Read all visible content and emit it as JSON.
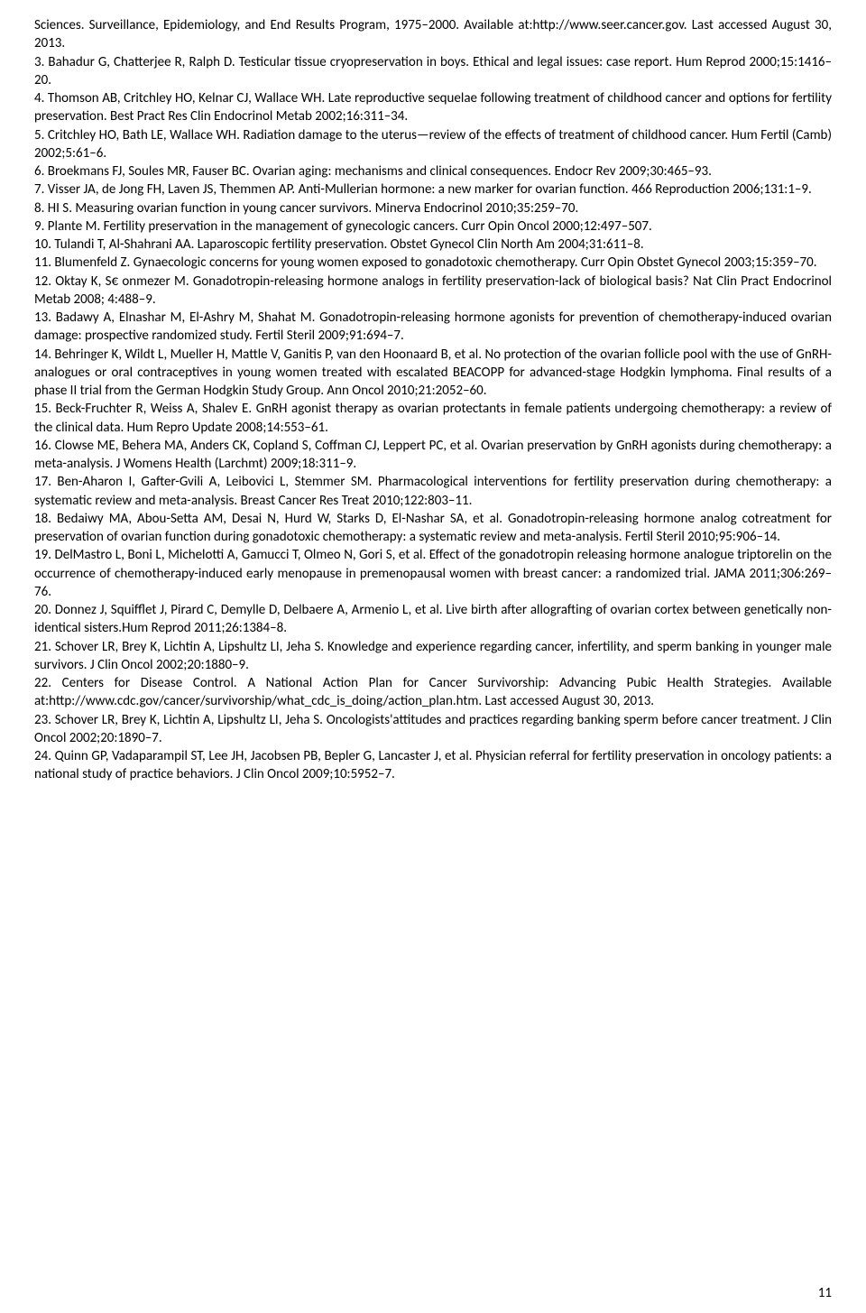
{
  "references": [
    "Sciences. Surveillance, Epidemiology, and End Results Program, 1975–2000. Available at:http://www.seer.cancer.gov. Last accessed August 30, 2013.",
    "3. Bahadur G, Chatterjee R, Ralph D. Testicular tissue cryopreservation in boys. Ethical and legal issues: case report. Hum Reprod 2000;15:1416–20.",
    "4. Thomson AB, Critchley HO, Kelnar CJ, Wallace WH. Late reproductive sequelae following treatment of childhood cancer and options for fertility preservation. Best Pract Res Clin Endocrinol Metab 2002;16:311–34.",
    "5. Critchley HO, Bath LE, Wallace WH. Radiation damage to the uterus—review of the effects of treatment of childhood cancer. Hum Fertil (Camb) 2002;5:61–6.",
    "6. Broekmans FJ, Soules MR, Fauser BC. Ovarian aging: mechanisms and clinical consequences. Endocr Rev 2009;30:465–93.",
    "7. Visser JA, de Jong FH, Laven JS, Themmen AP. Anti-Mullerian hormone: a new marker for ovarian function. 466 Reproduction 2006;131:1–9.",
    "8. HI S. Measuring ovarian function in young cancer survivors. Minerva Endocrinol 2010;35:259–70.",
    "9. Plante M. Fertility preservation in the management of gynecologic cancers. Curr Opin Oncol 2000;12:497–507.",
    "10. Tulandi T, Al-Shahrani AA. Laparoscopic fertility preservation. Obstet Gynecol Clin North Am 2004;31:611–8.",
    "11. Blumenfeld Z. Gynaecologic concerns for young women exposed to gonadotoxic chemotherapy. Curr Opin Obstet Gynecol 2003;15:359–70.",
    "12. Oktay K, S€ onmezer M. Gonadotropin-releasing hormone analogs in fertility preservation-lack of biological basis? Nat Clin Pract Endocrinol Metab 2008; 4:488–9.",
    "13. Badawy A, Elnashar M, El-Ashry M, Shahat M. Gonadotropin-releasing hormone agonists for prevention of chemotherapy-induced ovarian damage: prospective randomized study. Fertil Steril 2009;91:694–7.",
    "14. Behringer K, Wildt L, Mueller H, Mattle V, Ganitis P, van den Hoonaard B, et al. No protection of the ovarian follicle pool with the use of GnRH-analogues or oral contraceptives in young women treated with escalated BEACOPP for advanced-stage Hodgkin lymphoma. Final results of a phase II trial from the German Hodgkin Study Group. Ann Oncol 2010;21:2052–60.",
    "15. Beck-Fruchter R, Weiss A, Shalev E. GnRH agonist therapy as ovarian protectants in female patients undergoing chemotherapy: a review of the clinical data. Hum Repro Update 2008;14:553–61.",
    "16. Clowse ME, Behera MA, Anders CK, Copland S, Coffman CJ, Leppert PC, et al. Ovarian preservation by GnRH agonists during chemotherapy: a meta-analysis. J Womens Health (Larchmt) 2009;18:311–9.",
    "17. Ben-Aharon I, Gafter-Gvili A, Leibovici L, Stemmer SM. Pharmacological interventions for fertility preservation during chemotherapy: a systematic review and meta-analysis. Breast Cancer Res Treat 2010;122:803–11.",
    "18. Bedaiwy MA, Abou-Setta AM, Desai N, Hurd W, Starks D, El-Nashar SA, et al. Gonadotropin-releasing hormone analog cotreatment for preservation of ovarian function during gonadotoxic chemotherapy: a systematic review and meta-analysis. Fertil Steril 2010;95:906–14.",
    "19. DelMastro L, Boni L, Michelotti A, Gamucci T, Olmeo N, Gori S, et al. Effect of the gonadotropin releasing hormone analogue triptorelin on the occurrence of chemotherapy-induced early menopause in premenopausal women with breast cancer: a randomized trial. JAMA 2011;306:269–76.",
    "20. Donnez J, Squifflet J, Pirard C, Demylle D, Delbaere A, Armenio L, et al. Live birth after allografting of ovarian cortex between genetically non-identical sisters.Hum Reprod 2011;26:1384–8.",
    "21. Schover LR, Brey K, Lichtin A, Lipshultz LI, Jeha S. Knowledge and experience regarding cancer, infertility, and sperm banking in younger male survivors. J Clin Oncol 2002;20:1880–9.",
    "22. Centers for Disease Control. A National Action Plan for Cancer Survivorship: Advancing Pubic Health Strategies. Available at:http://www.cdc.gov/cancer/survivorship/what_cdc_is_doing/action_plan.htm. Last accessed August 30, 2013.",
    "23. Schover LR, Brey K, Lichtin A, Lipshultz LI, Jeha S. Oncologists'attitudes and practices regarding banking sperm before cancer treatment. J Clin Oncol 2002;20:1890–7.",
    "24. Quinn GP, Vadaparampil ST, Lee JH, Jacobsen PB, Bepler G, Lancaster J, et al. Physician referral for fertility preservation in oncology patients: a national study of practice behaviors. J Clin Oncol 2009;10:5952–7."
  ],
  "page_number": "11"
}
